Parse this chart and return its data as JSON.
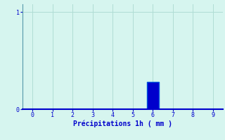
{
  "bar_x": [
    6
  ],
  "bar_height": [
    0.28
  ],
  "bar_color": "#0000cc",
  "bar_edge_color": "#0055dd",
  "xlim": [
    -0.5,
    9.5
  ],
  "ylim": [
    0,
    1.08
  ],
  "xticks": [
    0,
    1,
    2,
    3,
    4,
    5,
    6,
    7,
    8,
    9
  ],
  "yticks": [
    0,
    1
  ],
  "xlabel": "Précipitations 1h ( mm )",
  "background_color": "#d6f5ef",
  "grid_color": "#b0ddd4",
  "tick_color": "#0000cc",
  "label_color": "#0000cc",
  "axis_color": "#5599aa",
  "bottom_line_color": "#0000cc",
  "bar_width": 0.6,
  "tick_fontsize": 6,
  "xlabel_fontsize": 7
}
